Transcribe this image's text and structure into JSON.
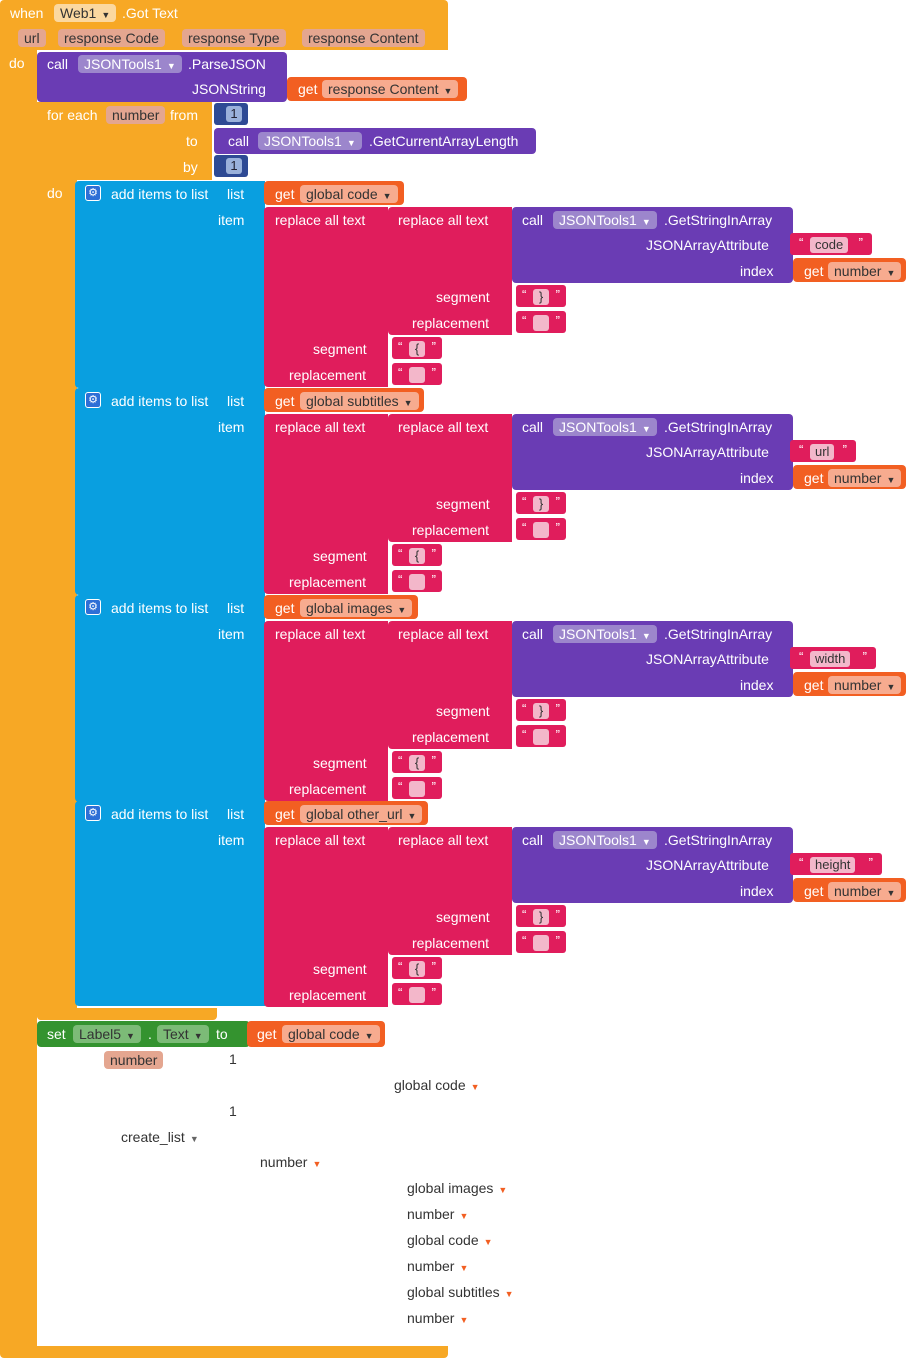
{
  "event": {
    "when": "when",
    "component": "Web1",
    "event_name": ".Got Text",
    "params": [
      "url",
      "response Code",
      "response Type",
      "response Content"
    ],
    "do": "do"
  },
  "parse": {
    "call": "call",
    "component": "JSONTools1",
    "method": ".ParseJSON",
    "arg": "JSONString",
    "get": "get",
    "var": "response Content"
  },
  "loop": {
    "for_each": "for each",
    "var": "number",
    "from": "from",
    "from_val": "1",
    "to": "to",
    "call": "call",
    "component": "JSONTools1",
    "method": ".GetCurrentArrayLength",
    "by": "by",
    "by_val": "1",
    "do": "do"
  },
  "add_blocks": [
    {
      "title": "add items to list",
      "list_kw": "list",
      "get": "get",
      "list_var": "global code",
      "item_kw": "item",
      "replace": "replace all text",
      "call": "call",
      "component": "JSONTools1",
      "method": ".GetStringInArray",
      "attr_kw": "JSONArrayAttribute",
      "attr": "code",
      "index_kw": "index",
      "index_var": "number",
      "segment_kw": "segment",
      "replacement_kw": "replacement",
      "seg_inner": "}",
      "seg_outer": "{"
    },
    {
      "title": "add items to list",
      "list_kw": "list",
      "get": "get",
      "list_var": "global subtitles",
      "item_kw": "item",
      "replace": "replace all text",
      "call": "call",
      "component": "JSONTools1",
      "method": ".GetStringInArray",
      "attr_kw": "JSONArrayAttribute",
      "attr": "url",
      "index_kw": "index",
      "index_var": "number",
      "segment_kw": "segment",
      "replacement_kw": "replacement",
      "seg_inner": "}",
      "seg_outer": "{"
    },
    {
      "title": "add items to list",
      "list_kw": "list",
      "get": "get",
      "list_var": "global images",
      "item_kw": "item",
      "replace": "replace all text",
      "call": "call",
      "component": "JSONTools1",
      "method": ".GetStringInArray",
      "attr_kw": "JSONArrayAttribute",
      "attr": "width",
      "index_kw": "index",
      "index_var": "number",
      "segment_kw": "segment",
      "replacement_kw": "replacement",
      "seg_inner": "}",
      "seg_outer": "{"
    },
    {
      "title": "add items to list",
      "list_kw": "list",
      "get": "get",
      "list_var": "global other_url",
      "item_kw": "item",
      "replace": "replace all text",
      "call": "call",
      "component": "JSONTools1",
      "method": ".GetStringInArray",
      "attr_kw": "JSONArrayAttribute",
      "attr": "height",
      "index_kw": "index",
      "index_var": "number",
      "segment_kw": "segment",
      "replacement_kw": "replacement",
      "seg_inner": "}",
      "seg_outer": "{"
    }
  ],
  "setblock": {
    "set": "set",
    "component": "Label5",
    "prop": "Text",
    "to": "to",
    "get": "get",
    "var": "global code"
  },
  "stray": {
    "number_chip": "number",
    "one_a": "1",
    "global_code": "global code",
    "one_b": "1",
    "create_list": "create_list",
    "number_a": "number",
    "global_images": "global images",
    "number_b": "number",
    "global_code_b": "global code",
    "number_c": "number",
    "global_subtitles": "global subtitles",
    "number_d": "number"
  }
}
